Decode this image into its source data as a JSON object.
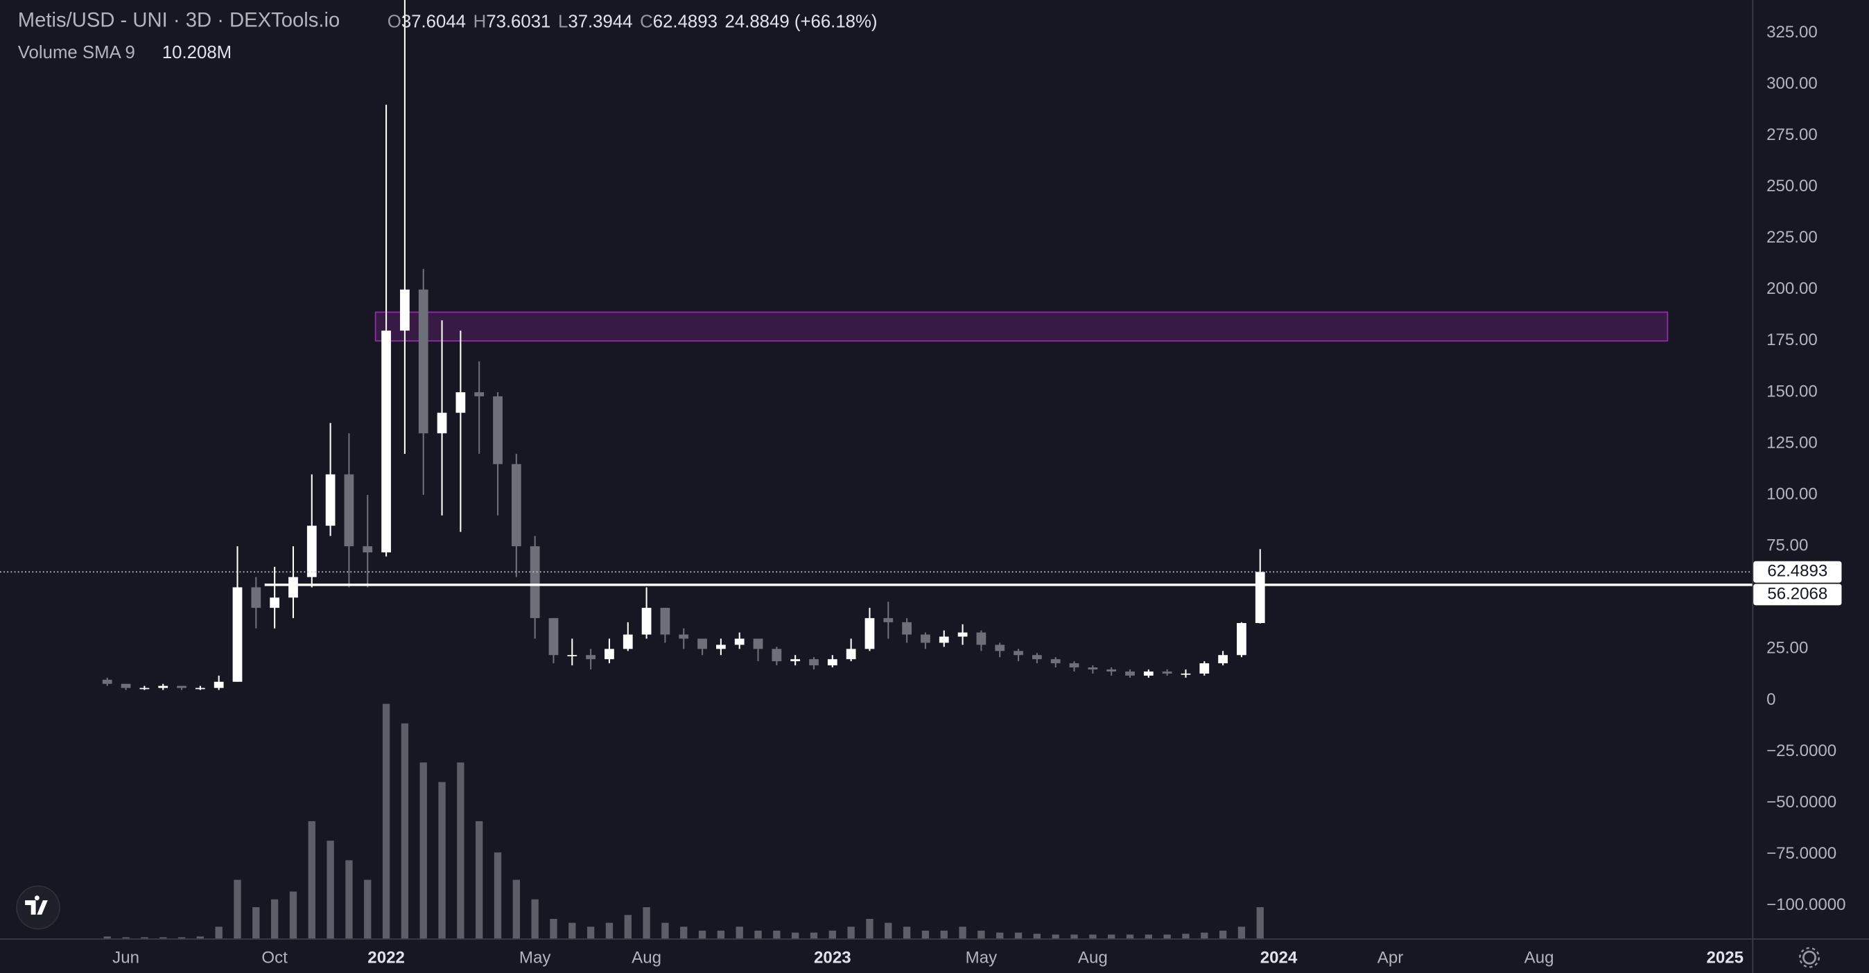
{
  "chart_data": {
    "type": "candlestick",
    "title": "Metis/USD - UNI · 3D · DEXTools.io",
    "ohlc_labels": [
      "O",
      "H",
      "L",
      "C"
    ],
    "change": 24.8849,
    "change_label": "(+66.18%)",
    "volume_label": "Volume SMA 9",
    "volume_sma_label": "10.208M",
    "categories": [
      null,
      "Jun",
      null,
      null,
      null,
      null,
      null,
      null,
      null,
      "Oct",
      null,
      null,
      null,
      null,
      null,
      "2022",
      null,
      null,
      null,
      null,
      null,
      null,
      null,
      "May",
      null,
      null,
      null,
      null,
      null,
      "Aug",
      null,
      null,
      null,
      null,
      null,
      null,
      null,
      null,
      null,
      "2023",
      null,
      null,
      null,
      null,
      null,
      null,
      null,
      "May",
      null,
      null,
      null,
      null,
      null,
      "Aug",
      null,
      null,
      null,
      null,
      null,
      null,
      null,
      null,
      null,
      "2024",
      null,
      null,
      null,
      null,
      null,
      "Apr",
      null,
      null,
      null,
      null,
      null,
      null,
      null,
      "Aug",
      null,
      null,
      null,
      null,
      null,
      null,
      null,
      null,
      null,
      "2025"
    ],
    "open": [
      10,
      8,
      6,
      6,
      7,
      6,
      6,
      9,
      55,
      45,
      50,
      60,
      85,
      110,
      75,
      72,
      180,
      200,
      130,
      140,
      150,
      148,
      115,
      75,
      40,
      22,
      22,
      20,
      25,
      32,
      45,
      32,
      30,
      25,
      27,
      30,
      25,
      19,
      20,
      17,
      20,
      25,
      40,
      38,
      32,
      28,
      31,
      33,
      27,
      24,
      22,
      20,
      18,
      16,
      15,
      14,
      12,
      14,
      13,
      13,
      18,
      22,
      37.6044,
      null,
      null,
      null,
      null,
      null,
      null,
      null,
      null,
      null,
      null,
      null,
      null,
      null,
      null,
      null,
      null,
      null,
      null,
      null,
      null,
      null,
      null,
      null,
      null,
      null
    ],
    "high": [
      11,
      8,
      7,
      8,
      7,
      7,
      12,
      75,
      60,
      65,
      75,
      110,
      135,
      130,
      100,
      290,
      341,
      210,
      185,
      180,
      165,
      150,
      120,
      80,
      40,
      30,
      25,
      30,
      38,
      55,
      45,
      35,
      30,
      30,
      33,
      30,
      26,
      22,
      21,
      22,
      30,
      45,
      48,
      40,
      33,
      34,
      37,
      34,
      28,
      25,
      23,
      21,
      19,
      17,
      16,
      15,
      15,
      15,
      15,
      19,
      24,
      38,
      73.6031,
      null,
      null,
      null,
      null,
      null,
      null,
      null,
      null,
      null,
      null,
      null,
      null,
      null,
      null,
      null,
      null,
      null,
      null,
      null,
      null,
      null,
      null,
      null,
      null,
      null
    ],
    "low": [
      7,
      5,
      5,
      5,
      5,
      5,
      5,
      9,
      35,
      35,
      40,
      55,
      80,
      55,
      55,
      70,
      120,
      100,
      90,
      82,
      120,
      90,
      60,
      30,
      18,
      17,
      15,
      18,
      24,
      30,
      28,
      25,
      22,
      22,
      25,
      19,
      17,
      17,
      15,
      16,
      19,
      24,
      30,
      28,
      25,
      26,
      27,
      24,
      21,
      19,
      18,
      16,
      14,
      13,
      12,
      11,
      11,
      12,
      11,
      12,
      17,
      21,
      37.3944,
      null,
      null,
      null,
      null,
      null,
      null,
      null,
      null,
      null,
      null,
      null,
      null,
      null,
      null,
      null,
      null,
      null,
      null,
      null,
      null,
      null,
      null,
      null,
      null,
      null
    ],
    "close": [
      8,
      6,
      6,
      7,
      6,
      6,
      9,
      55,
      45,
      50,
      60,
      85,
      110,
      75,
      72,
      180,
      200,
      130,
      140,
      150,
      148,
      115,
      75,
      40,
      22,
      22,
      20,
      25,
      32,
      45,
      32,
      30,
      25,
      27,
      30,
      25,
      19,
      20,
      17,
      20,
      25,
      40,
      38,
      32,
      28,
      31,
      33,
      27,
      24,
      22,
      20,
      18,
      16,
      15,
      14,
      12,
      14,
      13,
      13,
      18,
      22,
      37.6044,
      62.4893,
      null,
      null,
      null,
      null,
      null,
      null,
      null,
      null,
      null,
      null,
      null,
      null,
      null,
      null,
      null,
      null,
      null,
      null,
      null,
      null,
      null,
      null,
      null,
      null,
      null
    ],
    "volume": [
      0.5,
      0.3,
      0.3,
      0.3,
      0.3,
      0.5,
      3,
      15,
      8,
      10,
      12,
      30,
      25,
      20,
      15,
      60,
      55,
      45,
      40,
      45,
      30,
      22,
      15,
      10,
      5,
      4,
      3,
      4,
      6,
      8,
      4,
      3,
      2,
      2,
      3,
      2,
      2,
      1.5,
      1.5,
      2,
      3,
      5,
      4,
      3,
      2,
      2,
      3,
      2,
      1.5,
      1.5,
      1.2,
      1,
      1,
      1,
      1,
      1,
      1,
      1,
      1.2,
      1.5,
      2,
      3,
      8,
      null,
      null,
      null,
      null,
      null,
      null,
      null,
      null,
      null,
      null,
      null,
      null,
      null,
      null,
      null,
      null,
      null,
      null,
      null,
      null,
      null,
      null,
      null,
      null,
      null
    ],
    "volume_ylim": [
      0,
      60
    ],
    "ylim": [
      -116,
      341
    ],
    "yticks": [
      {
        "value": 325,
        "label": "325.00"
      },
      {
        "value": 300,
        "label": "300.00"
      },
      {
        "value": 275,
        "label": "275.00"
      },
      {
        "value": 250,
        "label": "250.00"
      },
      {
        "value": 225,
        "label": "225.00"
      },
      {
        "value": 200,
        "label": "200.00"
      },
      {
        "value": 175,
        "label": "175.00"
      },
      {
        "value": 150,
        "label": "150.00"
      },
      {
        "value": 125,
        "label": "125.00"
      },
      {
        "value": 100,
        "label": "100.00"
      },
      {
        "value": 75,
        "label": "75.00"
      },
      {
        "value": 25,
        "label": "25.00"
      },
      0,
      {
        "value": -25,
        "label": "−25.0000"
      },
      {
        "value": -50,
        "label": "−50.0000"
      },
      {
        "value": -75,
        "label": "−75.0000"
      },
      {
        "value": -100,
        "label": "−100.0000"
      }
    ],
    "support_line": 56.2068,
    "zone": [
      175,
      189
    ],
    "up_color": "#ffffff",
    "down_color": "#6e7079",
    "volume_color": "#5d5f68",
    "zone_color": "#9c27b0"
  }
}
